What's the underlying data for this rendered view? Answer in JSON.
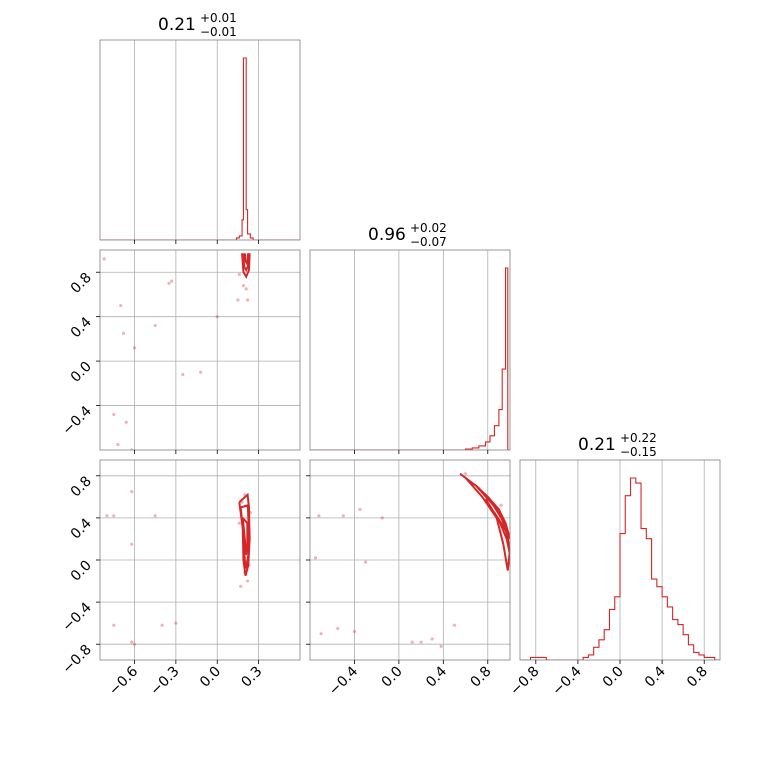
{
  "colors": {
    "line": "#d62728",
    "grid": "#b0b0b0",
    "frame": "#808080",
    "text": "#000000"
  },
  "chart_data": {
    "type": "corner",
    "parameters": [
      {
        "index": 0,
        "range": [
          -0.85,
          0.6
        ],
        "ticks": [
          -0.6,
          -0.3,
          0.0,
          0.3
        ],
        "tick_labels": [
          "−0.6",
          "−0.3",
          "0.0",
          "0.3"
        ],
        "title": {
          "main": "0.21",
          "plus": "+0.01",
          "minus": "−0.01"
        },
        "histogram": {
          "type": "step",
          "edges": [
            0.12,
            0.14,
            0.16,
            0.18,
            0.19,
            0.2,
            0.21,
            0.22,
            0.24,
            0.26,
            0.28
          ],
          "counts": [
            0,
            0.01,
            0.02,
            0.1,
            0.9,
            0.9,
            0.15,
            0.03,
            0.01,
            0
          ]
        }
      },
      {
        "index": 1,
        "range": [
          -0.8,
          1.0
        ],
        "ticks": [
          -0.4,
          0.0,
          0.4,
          0.8
        ],
        "tick_labels": [
          "−0.4",
          "0.0",
          "0.4",
          "0.8"
        ],
        "title": {
          "main": "0.96",
          "plus": "+0.02",
          "minus": "−0.07"
        },
        "histogram": {
          "type": "step",
          "edges": [
            0.6,
            0.66,
            0.72,
            0.78,
            0.82,
            0.86,
            0.9,
            0.93,
            0.96,
            0.98,
            1.0
          ],
          "counts": [
            0.005,
            0.01,
            0.02,
            0.04,
            0.07,
            0.12,
            0.2,
            0.4,
            0.9,
            0
          ]
        }
      },
      {
        "index": 2,
        "range": [
          -0.95,
          0.95
        ],
        "ticks": [
          -0.8,
          -0.4,
          0.0,
          0.4,
          0.8
        ],
        "tick_labels": [
          "−0.8",
          "−0.4",
          "0.0",
          "0.4",
          "0.8"
        ],
        "title": {
          "main": "0.21",
          "plus": "+0.22",
          "minus": "−0.15"
        },
        "histogram": {
          "type": "step",
          "edges": [
            -0.95,
            -0.85,
            -0.8,
            -0.75,
            -0.7,
            -0.6,
            -0.5,
            -0.4,
            -0.35,
            -0.3,
            -0.25,
            -0.2,
            -0.15,
            -0.1,
            -0.05,
            0.0,
            0.05,
            0.1,
            0.15,
            0.2,
            0.25,
            0.3,
            0.35,
            0.4,
            0.45,
            0.5,
            0.55,
            0.6,
            0.65,
            0.7,
            0.75,
            0.8,
            0.85,
            0.9,
            0.95
          ],
          "counts": [
            0,
            0.01,
            0.01,
            0.01,
            0,
            0,
            0,
            0,
            0.01,
            0.02,
            0.05,
            0.08,
            0.12,
            0.2,
            0.25,
            0.5,
            0.65,
            0.72,
            0.7,
            0.52,
            0.48,
            0.32,
            0.29,
            0.25,
            0.21,
            0.16,
            0.14,
            0.1,
            0.06,
            0.03,
            0.02,
            0.01,
            0.01,
            0
          ]
        }
      }
    ],
    "panels_2d": [
      {
        "row": 1,
        "col": 0,
        "scatter": [
          [
            -0.75,
            -0.48
          ],
          [
            -0.72,
            -0.75
          ],
          [
            -0.66,
            -0.55
          ],
          [
            -0.62,
            -0.8
          ],
          [
            -0.6,
            -0.85
          ],
          [
            -0.68,
            0.25
          ],
          [
            -0.6,
            0.12
          ],
          [
            -0.45,
            0.32
          ],
          [
            -0.35,
            0.7
          ],
          [
            -0.33,
            0.72
          ],
          [
            -0.12,
            -0.1
          ],
          [
            -0.25,
            -0.12
          ],
          [
            0.0,
            0.4
          ],
          [
            0.15,
            0.55
          ],
          [
            0.22,
            0.55
          ],
          [
            0.16,
            0.78
          ],
          [
            0.19,
            0.68
          ],
          [
            0.21,
            0.65
          ],
          [
            -0.82,
            0.92
          ],
          [
            -0.7,
            0.5
          ]
        ],
        "contours": [
          [
            [
              0.18,
              0.97
            ],
            [
              0.19,
              0.8
            ],
            [
              0.21,
              0.76
            ],
            [
              0.23,
              0.82
            ],
            [
              0.235,
              0.97
            ]
          ],
          [
            [
              0.19,
              0.97
            ],
            [
              0.195,
              0.85
            ],
            [
              0.21,
              0.82
            ],
            [
              0.225,
              0.86
            ],
            [
              0.228,
              0.97
            ]
          ],
          [
            [
              0.2,
              0.97
            ],
            [
              0.205,
              0.9
            ],
            [
              0.215,
              0.88
            ],
            [
              0.222,
              0.92
            ],
            [
              0.222,
              0.97
            ]
          ]
        ]
      },
      {
        "row": 2,
        "col": 0,
        "scatter": [
          [
            -0.8,
            0.42
          ],
          [
            -0.75,
            0.42
          ],
          [
            -0.62,
            0.15
          ],
          [
            -0.62,
            0.65
          ],
          [
            -0.45,
            0.42
          ],
          [
            -0.3,
            -0.6
          ],
          [
            -0.4,
            -0.62
          ],
          [
            -0.62,
            -0.78
          ],
          [
            -0.75,
            -0.62
          ],
          [
            -0.6,
            -0.8
          ],
          [
            0.2,
            -0.12
          ],
          [
            0.22,
            -0.2
          ],
          [
            0.17,
            -0.25
          ],
          [
            0.23,
            -0.05
          ],
          [
            0.2,
            0.62
          ],
          [
            0.18,
            0.55
          ],
          [
            0.24,
            0.45
          ],
          [
            0.16,
            0.35
          ]
        ],
        "contours": [
          [
            [
              0.16,
              0.55
            ],
            [
              0.185,
              0.3
            ],
            [
              0.19,
              0.0
            ],
            [
              0.205,
              -0.15
            ],
            [
              0.225,
              -0.05
            ],
            [
              0.235,
              0.2
            ],
            [
              0.23,
              0.5
            ],
            [
              0.22,
              0.62
            ],
            [
              0.16,
              0.55
            ]
          ],
          [
            [
              0.17,
              0.5
            ],
            [
              0.19,
              0.25
            ],
            [
              0.2,
              0.0
            ],
            [
              0.21,
              -0.08
            ],
            [
              0.225,
              0.05
            ],
            [
              0.228,
              0.3
            ],
            [
              0.222,
              0.52
            ],
            [
              0.17,
              0.5
            ]
          ],
          [
            [
              0.185,
              0.4
            ],
            [
              0.2,
              0.2
            ],
            [
              0.21,
              0.05
            ],
            [
              0.218,
              0.15
            ],
            [
              0.218,
              0.35
            ],
            [
              0.185,
              0.4
            ]
          ]
        ]
      },
      {
        "row": 2,
        "col": 1,
        "scatter": [
          [
            -0.72,
            0.42
          ],
          [
            -0.7,
            -0.7
          ],
          [
            -0.55,
            -0.65
          ],
          [
            -0.4,
            -0.68
          ],
          [
            -0.3,
            -0.02
          ],
          [
            -0.5,
            0.42
          ],
          [
            -0.35,
            0.48
          ],
          [
            -0.15,
            0.4
          ],
          [
            0.3,
            -0.75
          ],
          [
            0.2,
            -0.78
          ],
          [
            0.38,
            -0.82
          ],
          [
            0.5,
            -0.62
          ],
          [
            0.12,
            -0.78
          ],
          [
            0.6,
            0.82
          ],
          [
            0.72,
            0.68
          ],
          [
            0.92,
            0.52
          ],
          [
            -0.75,
            0.02
          ]
        ],
        "contours": [
          [
            [
              0.55,
              0.82
            ],
            [
              0.7,
              0.7
            ],
            [
              0.85,
              0.52
            ],
            [
              0.95,
              0.35
            ],
            [
              1.0,
              0.1
            ],
            [
              0.98,
              -0.1
            ],
            [
              0.94,
              0.15
            ],
            [
              0.88,
              0.4
            ],
            [
              0.75,
              0.6
            ],
            [
              0.6,
              0.78
            ]
          ],
          [
            [
              0.68,
              0.72
            ],
            [
              0.8,
              0.6
            ],
            [
              0.9,
              0.45
            ],
            [
              0.97,
              0.28
            ],
            [
              1.0,
              0.05
            ],
            [
              0.97,
              0.2
            ],
            [
              0.9,
              0.38
            ],
            [
              0.78,
              0.58
            ]
          ],
          [
            [
              0.8,
              0.6
            ],
            [
              0.9,
              0.48
            ],
            [
              0.96,
              0.35
            ],
            [
              1.0,
              0.2
            ],
            [
              0.95,
              0.3
            ],
            [
              0.86,
              0.45
            ]
          ]
        ]
      }
    ]
  }
}
